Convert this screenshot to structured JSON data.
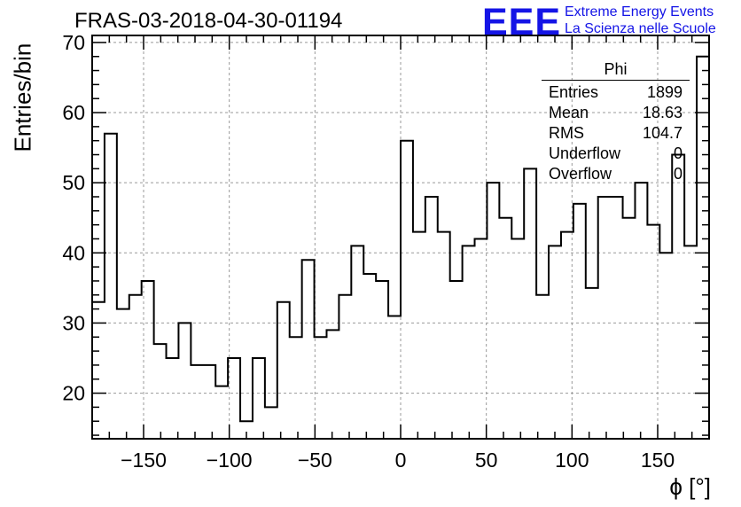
{
  "title": "FRAS-03-2018-04-30-01194",
  "logo": {
    "mark": "EEE",
    "line1": "Extreme Energy Events",
    "line2": "La Scienza nelle Scuole",
    "color": "#1414e6"
  },
  "stats_box": {
    "name": "Phi",
    "rows": [
      {
        "label": "Entries",
        "value": "1899"
      },
      {
        "label": "Mean",
        "value": "18.63"
      },
      {
        "label": "RMS",
        "value": "104.7"
      },
      {
        "label": "Underflow",
        "value": "0"
      },
      {
        "label": "Overflow",
        "value": "0"
      }
    ]
  },
  "chart_data": {
    "type": "histogram",
    "title": "FRAS-03-2018-04-30-01194",
    "xlabel": "ϕ [°]",
    "ylabel": "Entries/bin",
    "xlim": [
      -180,
      180
    ],
    "ylim": [
      13.5,
      71
    ],
    "grid": true,
    "bin_width": 7.2,
    "x_ticks": [
      -150,
      -100,
      -50,
      0,
      50,
      100,
      150
    ],
    "x_tick_labels": [
      "−150",
      "−100",
      "−50",
      "0",
      "50",
      "100",
      "150"
    ],
    "y_ticks": [
      20,
      30,
      40,
      50,
      60,
      70
    ],
    "y_tick_labels": [
      "20",
      "30",
      "40",
      "50",
      "60",
      "70"
    ],
    "bin_edges_start": -180,
    "values": [
      33,
      57,
      32,
      34,
      36,
      27,
      25,
      30,
      24,
      24,
      21,
      25,
      16,
      25,
      18,
      33,
      28,
      39,
      28,
      29,
      34,
      41,
      37,
      36,
      31,
      56,
      43,
      48,
      43,
      36,
      41,
      42,
      50,
      45,
      42,
      52,
      34,
      41,
      43,
      47,
      35,
      48,
      48,
      45,
      50,
      44,
      40,
      54,
      41,
      68
    ]
  }
}
